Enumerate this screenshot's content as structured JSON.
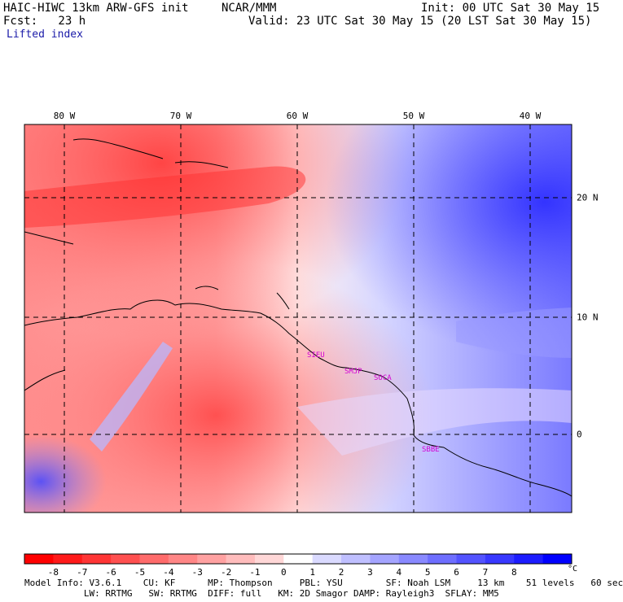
{
  "header": {
    "model": "HAIC-HIWC 13km ARW-GFS init",
    "org": "NCAR/MMM",
    "init": "Init: 00 UTC Sat 30 May 15",
    "fcst": "Fcst:   23 h",
    "valid": "Valid: 23 UTC Sat 30 May 15 (20 LST Sat 30 May 15)",
    "field": "Lifted index"
  },
  "map": {
    "longitude_labels": [
      "80 W",
      "70 W",
      "60 W",
      "50 W",
      "40 W"
    ],
    "latitude_labels": [
      "20 N",
      "10 N",
      "0"
    ],
    "places": [
      "SIEU",
      "SMJP",
      "SOCA",
      "SBBE"
    ]
  },
  "colorbar": {
    "labels": [
      "-8",
      "-7",
      "-6",
      "-5",
      "-4",
      "-3",
      "-2",
      "-1",
      "0",
      "1",
      "2",
      "3",
      "4",
      "5",
      "6",
      "7",
      "8"
    ],
    "unit": "°C",
    "colors": [
      "#ff0000",
      "#ff1a1a",
      "#ff3535",
      "#ff5050",
      "#ff6b6b",
      "#ff8686",
      "#ffa1a1",
      "#ffbcbc",
      "#ffd7d7",
      "#ffffff",
      "#dadaff",
      "#bfbfff",
      "#a4a4ff",
      "#8989ff",
      "#6e6eff",
      "#5353ff",
      "#3838ff",
      "#1c1cff",
      "#0000ff"
    ]
  },
  "footer": {
    "line1": "Model Info: V3.6.1    CU: KF      MP: Thompson     PBL: YSU        SF: Noah LSM     13 km    51 levels   60 sec",
    "line2": "           LW: RRTMG   SW: RRTMG  DIFF: full   KM: 2D Smagor DAMP: Rayleigh3  SFLAY: MM5"
  }
}
